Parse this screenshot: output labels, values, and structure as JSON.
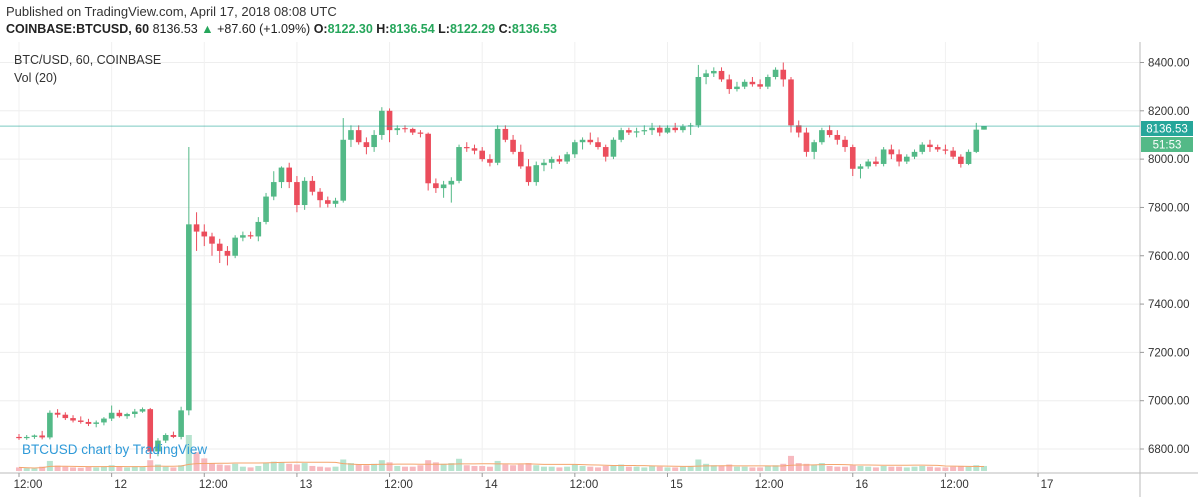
{
  "header": {
    "published": "Published on TradingView.com, April 17, 2018 08:08 UTC",
    "symbol": "COINBASE:BTCUSD, 60",
    "last": "8136.53",
    "change": "+87.60 (+1.09%)",
    "o_label": "O:",
    "o_value": "8122.30",
    "h_label": "H:",
    "h_value": "8136.54",
    "l_label": "L:",
    "l_value": "8122.29",
    "c_label": "C:",
    "c_value": "8136.53"
  },
  "legend": {
    "title": "BTC/USD, 60, COINBASE",
    "volume": "Vol (20)"
  },
  "watermark": "BTCUSD chart by TradingView",
  "price_tag": {
    "price": "8136.53",
    "countdown": "51:53"
  },
  "colors": {
    "up": "#53b987",
    "down": "#eb4d5c",
    "vol_up": "#b7e4cf",
    "vol_down": "#f7b9bf",
    "vol_ma": "#f4a56c",
    "price_line": "#26a69a"
  },
  "chart_data": {
    "type": "candlestick",
    "interval": "60",
    "ylim": [
      6680,
      8460
    ],
    "yticks": [
      6800,
      7000,
      7200,
      7400,
      7600,
      7800,
      8000,
      8200,
      8400
    ],
    "ytick_labels": [
      "6800.00",
      "7000.00",
      "7200.00",
      "7400.00",
      "7600.00",
      "7800.00",
      "8000.00",
      "8200.00",
      "8400.00"
    ],
    "xticks": [
      {
        "label": "12:00",
        "bar": 0
      },
      {
        "label": "12",
        "bar": 12
      },
      {
        "label": "12:00",
        "bar": 24
      },
      {
        "label": "13",
        "bar": 36
      },
      {
        "label": "12:00",
        "bar": 48
      },
      {
        "label": "14",
        "bar": 60
      },
      {
        "label": "12:00",
        "bar": 72
      },
      {
        "label": "15",
        "bar": 84
      },
      {
        "label": "12:00",
        "bar": 96
      },
      {
        "label": "16",
        "bar": 108
      },
      {
        "label": "12:00",
        "bar": 120
      },
      {
        "label": "17",
        "bar": 132
      }
    ],
    "current_price": 8136.53,
    "series": [
      {
        "name": "BTCUSD",
        "ohlc": [
          [
            6850,
            6862,
            6838,
            6845
          ],
          [
            6845,
            6858,
            6838,
            6850
          ],
          [
            6850,
            6860,
            6842,
            6856
          ],
          [
            6856,
            6875,
            6840,
            6848
          ],
          [
            6848,
            6960,
            6840,
            6950
          ],
          [
            6950,
            6965,
            6930,
            6942
          ],
          [
            6942,
            6952,
            6920,
            6928
          ],
          [
            6928,
            6940,
            6910,
            6918
          ],
          [
            6918,
            6935,
            6905,
            6912
          ],
          [
            6912,
            6925,
            6895,
            6904
          ],
          [
            6904,
            6918,
            6890,
            6910
          ],
          [
            6910,
            6932,
            6898,
            6926
          ],
          [
            6926,
            6980,
            6916,
            6950
          ],
          [
            6950,
            6962,
            6930,
            6936
          ],
          [
            6936,
            6950,
            6925,
            6945
          ],
          [
            6945,
            6966,
            6930,
            6955
          ],
          [
            6955,
            6972,
            6950,
            6965
          ],
          [
            6965,
            6970,
            6760,
            6790
          ],
          [
            6790,
            6845,
            6770,
            6835
          ],
          [
            6835,
            6865,
            6825,
            6858
          ],
          [
            6858,
            6872,
            6845,
            6850
          ],
          [
            6850,
            6975,
            6840,
            6960
          ],
          [
            6960,
            8050,
            6940,
            7730
          ],
          [
            7730,
            7780,
            7620,
            7700
          ],
          [
            7700,
            7730,
            7640,
            7680
          ],
          [
            7680,
            7695,
            7600,
            7650
          ],
          [
            7650,
            7670,
            7570,
            7620
          ],
          [
            7620,
            7640,
            7560,
            7600
          ],
          [
            7600,
            7685,
            7590,
            7675
          ],
          [
            7675,
            7700,
            7660,
            7685
          ],
          [
            7685,
            7700,
            7670,
            7680
          ],
          [
            7680,
            7760,
            7660,
            7740
          ],
          [
            7740,
            7860,
            7730,
            7845
          ],
          [
            7845,
            7950,
            7830,
            7905
          ],
          [
            7905,
            7970,
            7880,
            7965
          ],
          [
            7965,
            7985,
            7880,
            7905
          ],
          [
            7905,
            7930,
            7780,
            7810
          ],
          [
            7810,
            7925,
            7790,
            7910
          ],
          [
            7910,
            7930,
            7850,
            7865
          ],
          [
            7865,
            7880,
            7800,
            7830
          ],
          [
            7830,
            7845,
            7800,
            7815
          ],
          [
            7815,
            7840,
            7800,
            7828
          ],
          [
            7828,
            8170,
            7820,
            8080
          ],
          [
            8080,
            8140,
            8050,
            8120
          ],
          [
            8120,
            8140,
            8060,
            8070
          ],
          [
            8070,
            8090,
            8020,
            8050
          ],
          [
            8050,
            8120,
            8030,
            8100
          ],
          [
            8100,
            8215,
            8080,
            8200
          ],
          [
            8200,
            8210,
            8070,
            8120
          ],
          [
            8120,
            8140,
            8100,
            8128
          ],
          [
            8128,
            8140,
            8110,
            8125
          ],
          [
            8125,
            8130,
            8100,
            8110
          ],
          [
            8110,
            8120,
            8090,
            8105
          ],
          [
            8105,
            8110,
            7870,
            7900
          ],
          [
            7900,
            7920,
            7860,
            7880
          ],
          [
            7880,
            7910,
            7840,
            7895
          ],
          [
            7895,
            7925,
            7820,
            7910
          ],
          [
            7910,
            8060,
            7900,
            8050
          ],
          [
            8050,
            8070,
            8030,
            8045
          ],
          [
            8045,
            8060,
            8020,
            8035
          ],
          [
            8035,
            8050,
            7990,
            8000
          ],
          [
            8000,
            8020,
            7970,
            7985
          ],
          [
            7985,
            8140,
            7975,
            8125
          ],
          [
            8125,
            8140,
            8070,
            8080
          ],
          [
            8080,
            8100,
            8020,
            8030
          ],
          [
            8030,
            8060,
            7960,
            7970
          ],
          [
            7970,
            8000,
            7890,
            7905
          ],
          [
            7905,
            7990,
            7890,
            7975
          ],
          [
            7975,
            8000,
            7950,
            7985
          ],
          [
            7985,
            8010,
            7960,
            8000
          ],
          [
            8000,
            8015,
            7980,
            7990
          ],
          [
            7990,
            8030,
            7980,
            8020
          ],
          [
            8020,
            8080,
            8005,
            8070
          ],
          [
            8070,
            8090,
            8040,
            8080
          ],
          [
            8080,
            8110,
            8060,
            8070
          ],
          [
            8070,
            8090,
            8040,
            8050
          ],
          [
            8050,
            8060,
            7990,
            8010
          ],
          [
            8010,
            8090,
            8000,
            8080
          ],
          [
            8080,
            8130,
            8070,
            8120
          ],
          [
            8120,
            8130,
            8100,
            8110
          ],
          [
            8110,
            8130,
            8090,
            8115
          ],
          [
            8115,
            8140,
            8100,
            8120
          ],
          [
            8120,
            8150,
            8100,
            8130
          ],
          [
            8130,
            8140,
            8095,
            8110
          ],
          [
            8110,
            8140,
            8105,
            8130
          ],
          [
            8130,
            8150,
            8110,
            8120
          ],
          [
            8120,
            8145,
            8110,
            8135
          ],
          [
            8135,
            8150,
            8100,
            8140
          ],
          [
            8140,
            8390,
            8130,
            8340
          ],
          [
            8340,
            8370,
            8310,
            8355
          ],
          [
            8355,
            8380,
            8340,
            8365
          ],
          [
            8365,
            8380,
            8320,
            8330
          ],
          [
            8330,
            8350,
            8270,
            8290
          ],
          [
            8290,
            8320,
            8280,
            8300
          ],
          [
            8300,
            8330,
            8290,
            8320
          ],
          [
            8320,
            8340,
            8300,
            8310
          ],
          [
            8310,
            8330,
            8290,
            8300
          ],
          [
            8300,
            8350,
            8290,
            8340
          ],
          [
            8340,
            8380,
            8330,
            8370
          ],
          [
            8370,
            8400,
            8300,
            8330
          ],
          [
            8330,
            8340,
            8110,
            8140
          ],
          [
            8140,
            8160,
            8090,
            8110
          ],
          [
            8110,
            8130,
            8010,
            8030
          ],
          [
            8030,
            8080,
            8000,
            8070
          ],
          [
            8070,
            8130,
            8060,
            8120
          ],
          [
            8120,
            8140,
            8090,
            8100
          ],
          [
            8100,
            8120,
            8060,
            8080
          ],
          [
            8080,
            8095,
            8030,
            8050
          ],
          [
            8050,
            8060,
            7930,
            7960
          ],
          [
            7960,
            7980,
            7920,
            7970
          ],
          [
            7970,
            8000,
            7960,
            7990
          ],
          [
            7990,
            8010,
            7970,
            7980
          ],
          [
            7980,
            8050,
            7970,
            8040
          ],
          [
            8040,
            8060,
            8000,
            8020
          ],
          [
            8020,
            8040,
            7970,
            7990
          ],
          [
            7990,
            8020,
            7980,
            8010
          ],
          [
            8010,
            8040,
            8000,
            8030
          ],
          [
            8030,
            8070,
            8020,
            8060
          ],
          [
            8060,
            8080,
            8030,
            8050
          ],
          [
            8050,
            8060,
            8030,
            8040
          ],
          [
            8040,
            8060,
            8020,
            8035
          ],
          [
            8035,
            8050,
            8000,
            8010
          ],
          [
            8010,
            8020,
            7965,
            7980
          ],
          [
            7980,
            8040,
            7975,
            8030
          ],
          [
            8030,
            8150,
            8025,
            8122
          ],
          [
            8122,
            8137,
            8122,
            8137
          ]
        ]
      }
    ],
    "volume": [
      0.1,
      0.08,
      0.07,
      0.12,
      0.28,
      0.15,
      0.12,
      0.1,
      0.09,
      0.11,
      0.1,
      0.13,
      0.16,
      0.12,
      0.1,
      0.13,
      0.11,
      0.3,
      0.18,
      0.12,
      0.1,
      0.16,
      1.0,
      0.52,
      0.35,
      0.22,
      0.18,
      0.16,
      0.2,
      0.12,
      0.1,
      0.14,
      0.22,
      0.26,
      0.24,
      0.2,
      0.18,
      0.22,
      0.14,
      0.12,
      0.1,
      0.12,
      0.32,
      0.22,
      0.18,
      0.16,
      0.2,
      0.3,
      0.24,
      0.14,
      0.12,
      0.12,
      0.16,
      0.3,
      0.24,
      0.2,
      0.22,
      0.34,
      0.16,
      0.14,
      0.14,
      0.12,
      0.28,
      0.18,
      0.16,
      0.18,
      0.22,
      0.16,
      0.12,
      0.12,
      0.1,
      0.12,
      0.18,
      0.14,
      0.12,
      0.1,
      0.14,
      0.16,
      0.18,
      0.12,
      0.12,
      0.1,
      0.14,
      0.12,
      0.1,
      0.1,
      0.12,
      0.14,
      0.32,
      0.2,
      0.16,
      0.14,
      0.18,
      0.12,
      0.12,
      0.1,
      0.1,
      0.14,
      0.16,
      0.2,
      0.42,
      0.22,
      0.2,
      0.18,
      0.22,
      0.14,
      0.12,
      0.12,
      0.16,
      0.14,
      0.12,
      0.1,
      0.14,
      0.12,
      0.12,
      0.1,
      0.12,
      0.14,
      0.12,
      0.1,
      0.1,
      0.12,
      0.14,
      0.12,
      0.16,
      0.14
    ]
  }
}
